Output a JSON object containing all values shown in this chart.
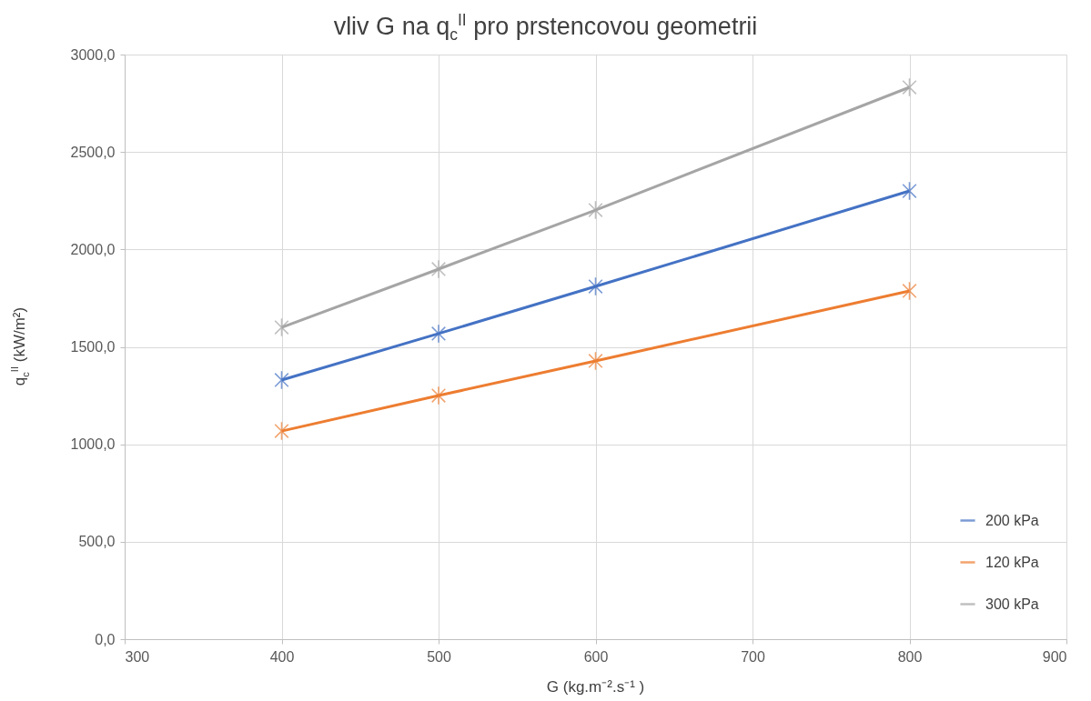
{
  "chart_data": {
    "type": "line",
    "title": "vliv G na q$_{c}$$^{II}$ pro prstencovou geometrii",
    "xlabel": "G (kg.m⁻².s⁻¹ )",
    "ylabel": "q$_{c}$$^{II}$ (kW/m²)",
    "x": [
      400,
      500,
      600,
      800
    ],
    "series": [
      {
        "name": "200 kPa",
        "color": "#4472c4",
        "values": [
          1330,
          1568,
          1810,
          2300
        ]
      },
      {
        "name": "120 kPa",
        "color": "#ed7d31",
        "values": [
          1068,
          1250,
          1428,
          1787
        ]
      },
      {
        "name": "300 kPa",
        "color": "#a5a5a5",
        "values": [
          1600,
          1899,
          2202,
          2832
        ]
      }
    ],
    "xlim": [
      300,
      900
    ],
    "xticks": [
      300,
      400,
      500,
      600,
      700,
      800,
      900
    ],
    "ylim": [
      0,
      3000
    ],
    "yticks": [
      {
        "value": 0,
        "label": "0,0"
      },
      {
        "value": 500,
        "label": "500,0"
      },
      {
        "value": 1000,
        "label": "1000,0"
      },
      {
        "value": 1500,
        "label": "1500,0"
      },
      {
        "value": 2000,
        "label": "2000,0"
      },
      {
        "value": 2500,
        "label": "2500,0"
      },
      {
        "value": 3000,
        "label": "3000,0"
      }
    ],
    "grid": true,
    "legend": "bottom right",
    "marker": "cross",
    "line_style": "solid"
  }
}
